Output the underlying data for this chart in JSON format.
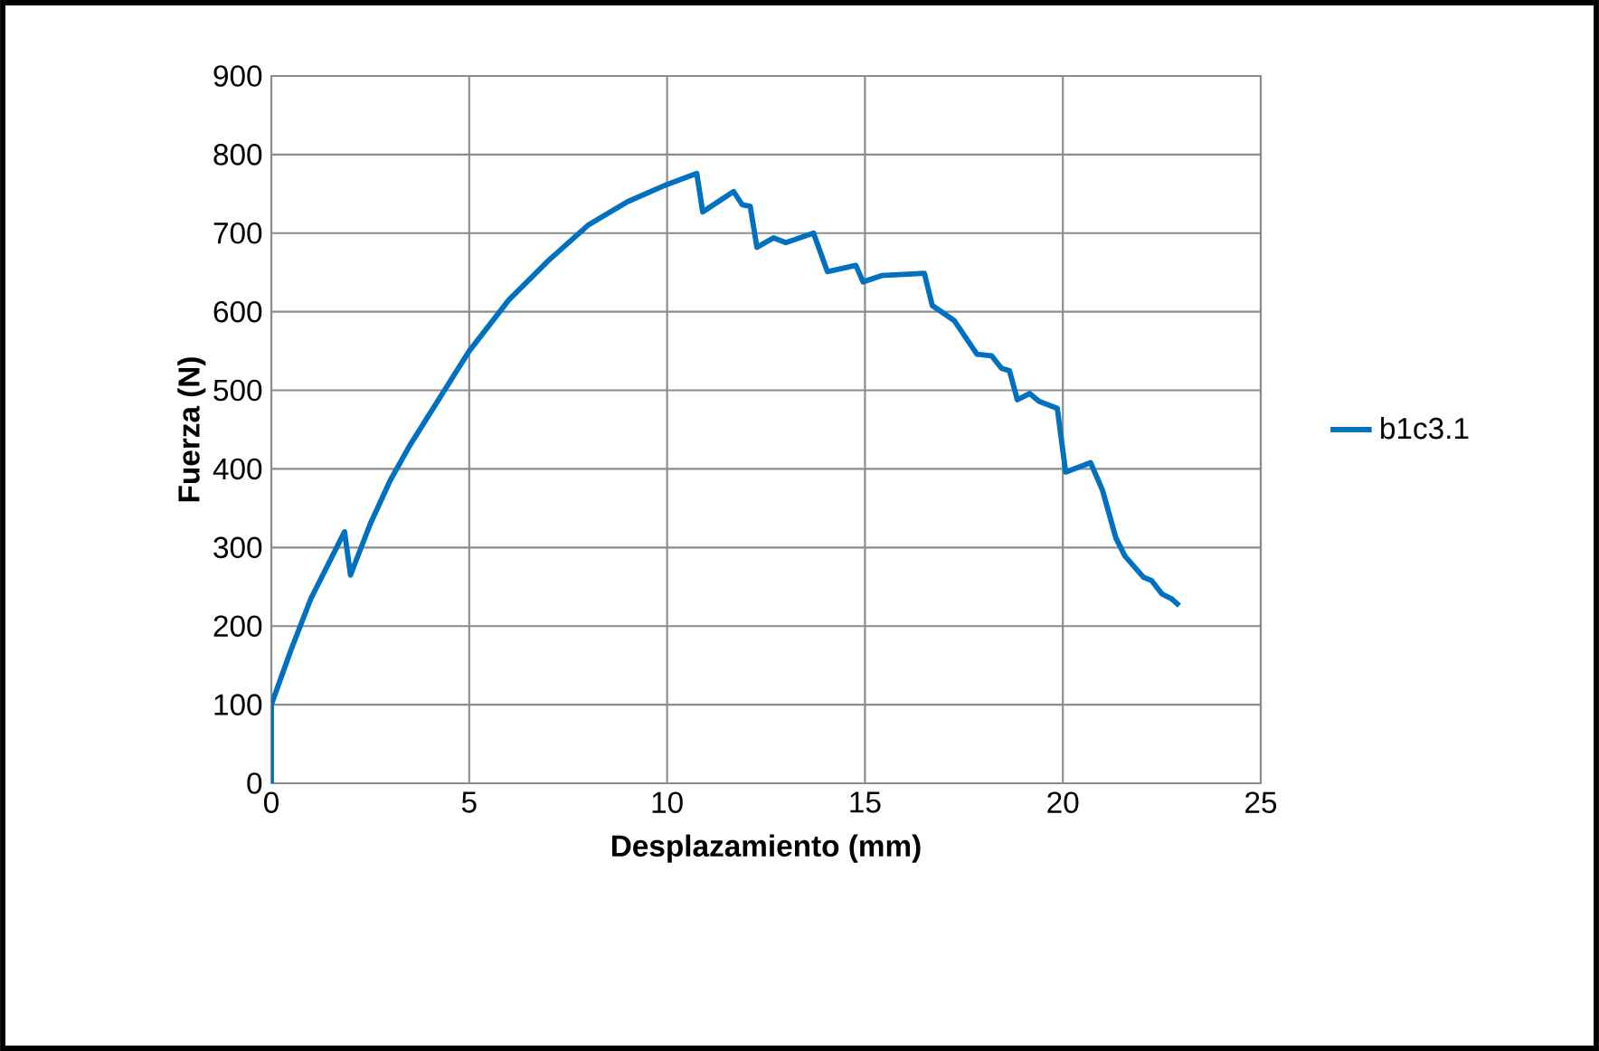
{
  "chart_data": {
    "type": "line",
    "xlabel": "Desplazamiento (mm)",
    "ylabel": "Fuerza (N)",
    "xlim": [
      0,
      25
    ],
    "xticks": [
      0,
      5,
      10,
      15,
      20,
      25
    ],
    "ylim": [
      0,
      900
    ],
    "yticks": [
      0,
      100,
      200,
      300,
      400,
      500,
      600,
      700,
      800,
      900
    ],
    "grid": true,
    "legend": "right",
    "marker": "none",
    "line_style": "solid",
    "series": [
      {
        "name": "b1c3.1",
        "color": "#0070c0",
        "x": [
          0,
          0,
          0.5,
          1,
          1.5,
          1.85,
          2.0,
          2.5,
          3,
          3.5,
          4,
          5,
          6,
          7,
          8,
          9,
          10,
          10.75,
          10.9,
          11.68,
          11.9,
          12.1,
          12.27,
          12.69,
          13.0,
          13.7,
          14.05,
          14.77,
          14.95,
          15.42,
          16.5,
          16.7,
          17.25,
          17.83,
          18.2,
          18.45,
          18.65,
          18.85,
          19.16,
          19.4,
          19.86,
          20.07,
          20.7,
          21.0,
          21.34,
          21.57,
          22.04,
          22.24,
          22.5,
          22.74,
          22.94
        ],
        "values": [
          0,
          100,
          170,
          235,
          285,
          320,
          265,
          330,
          385,
          430,
          470,
          550,
          615,
          665,
          710,
          740,
          762,
          776,
          727,
          753,
          736,
          734,
          682,
          694,
          688,
          700,
          651,
          659,
          638,
          646,
          649,
          608,
          589,
          546,
          544,
          528,
          525,
          488,
          496,
          486,
          477,
          396,
          408,
          373,
          312,
          289,
          262,
          258,
          241,
          235,
          226
        ]
      }
    ]
  }
}
